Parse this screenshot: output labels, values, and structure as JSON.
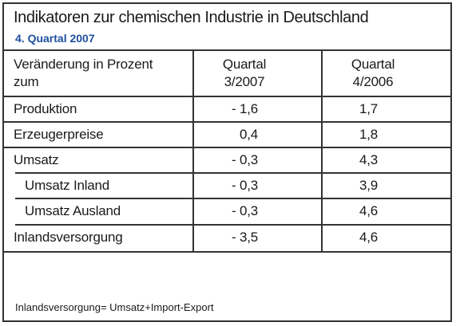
{
  "header": {
    "title": "Indikatoren zur chemischen Industrie in Deutschland",
    "subtitle": "4. Quartal 2007"
  },
  "table": {
    "columns": [
      [
        "Veränderung in Prozent",
        "zum"
      ],
      [
        "Quartal",
        "3/2007"
      ],
      [
        "Quartal",
        "4/2006"
      ]
    ],
    "rows": [
      [
        "Produktion",
        "- 1,6",
        "1,7"
      ],
      [
        "Erzeugerpreise",
        "0,4",
        "1,8"
      ],
      [
        "Umsatz",
        "- 0,3",
        "4,3"
      ],
      [
        "Umsatz Inland",
        "- 0,3",
        "3,9"
      ],
      [
        "Umsatz Ausland",
        "- 0,3",
        "4,6"
      ],
      [
        "Inlandsversorgung",
        "- 3,5",
        "4,6"
      ]
    ]
  },
  "footnote": "Inlandsversorgung= Umsatz+Import-Export"
}
